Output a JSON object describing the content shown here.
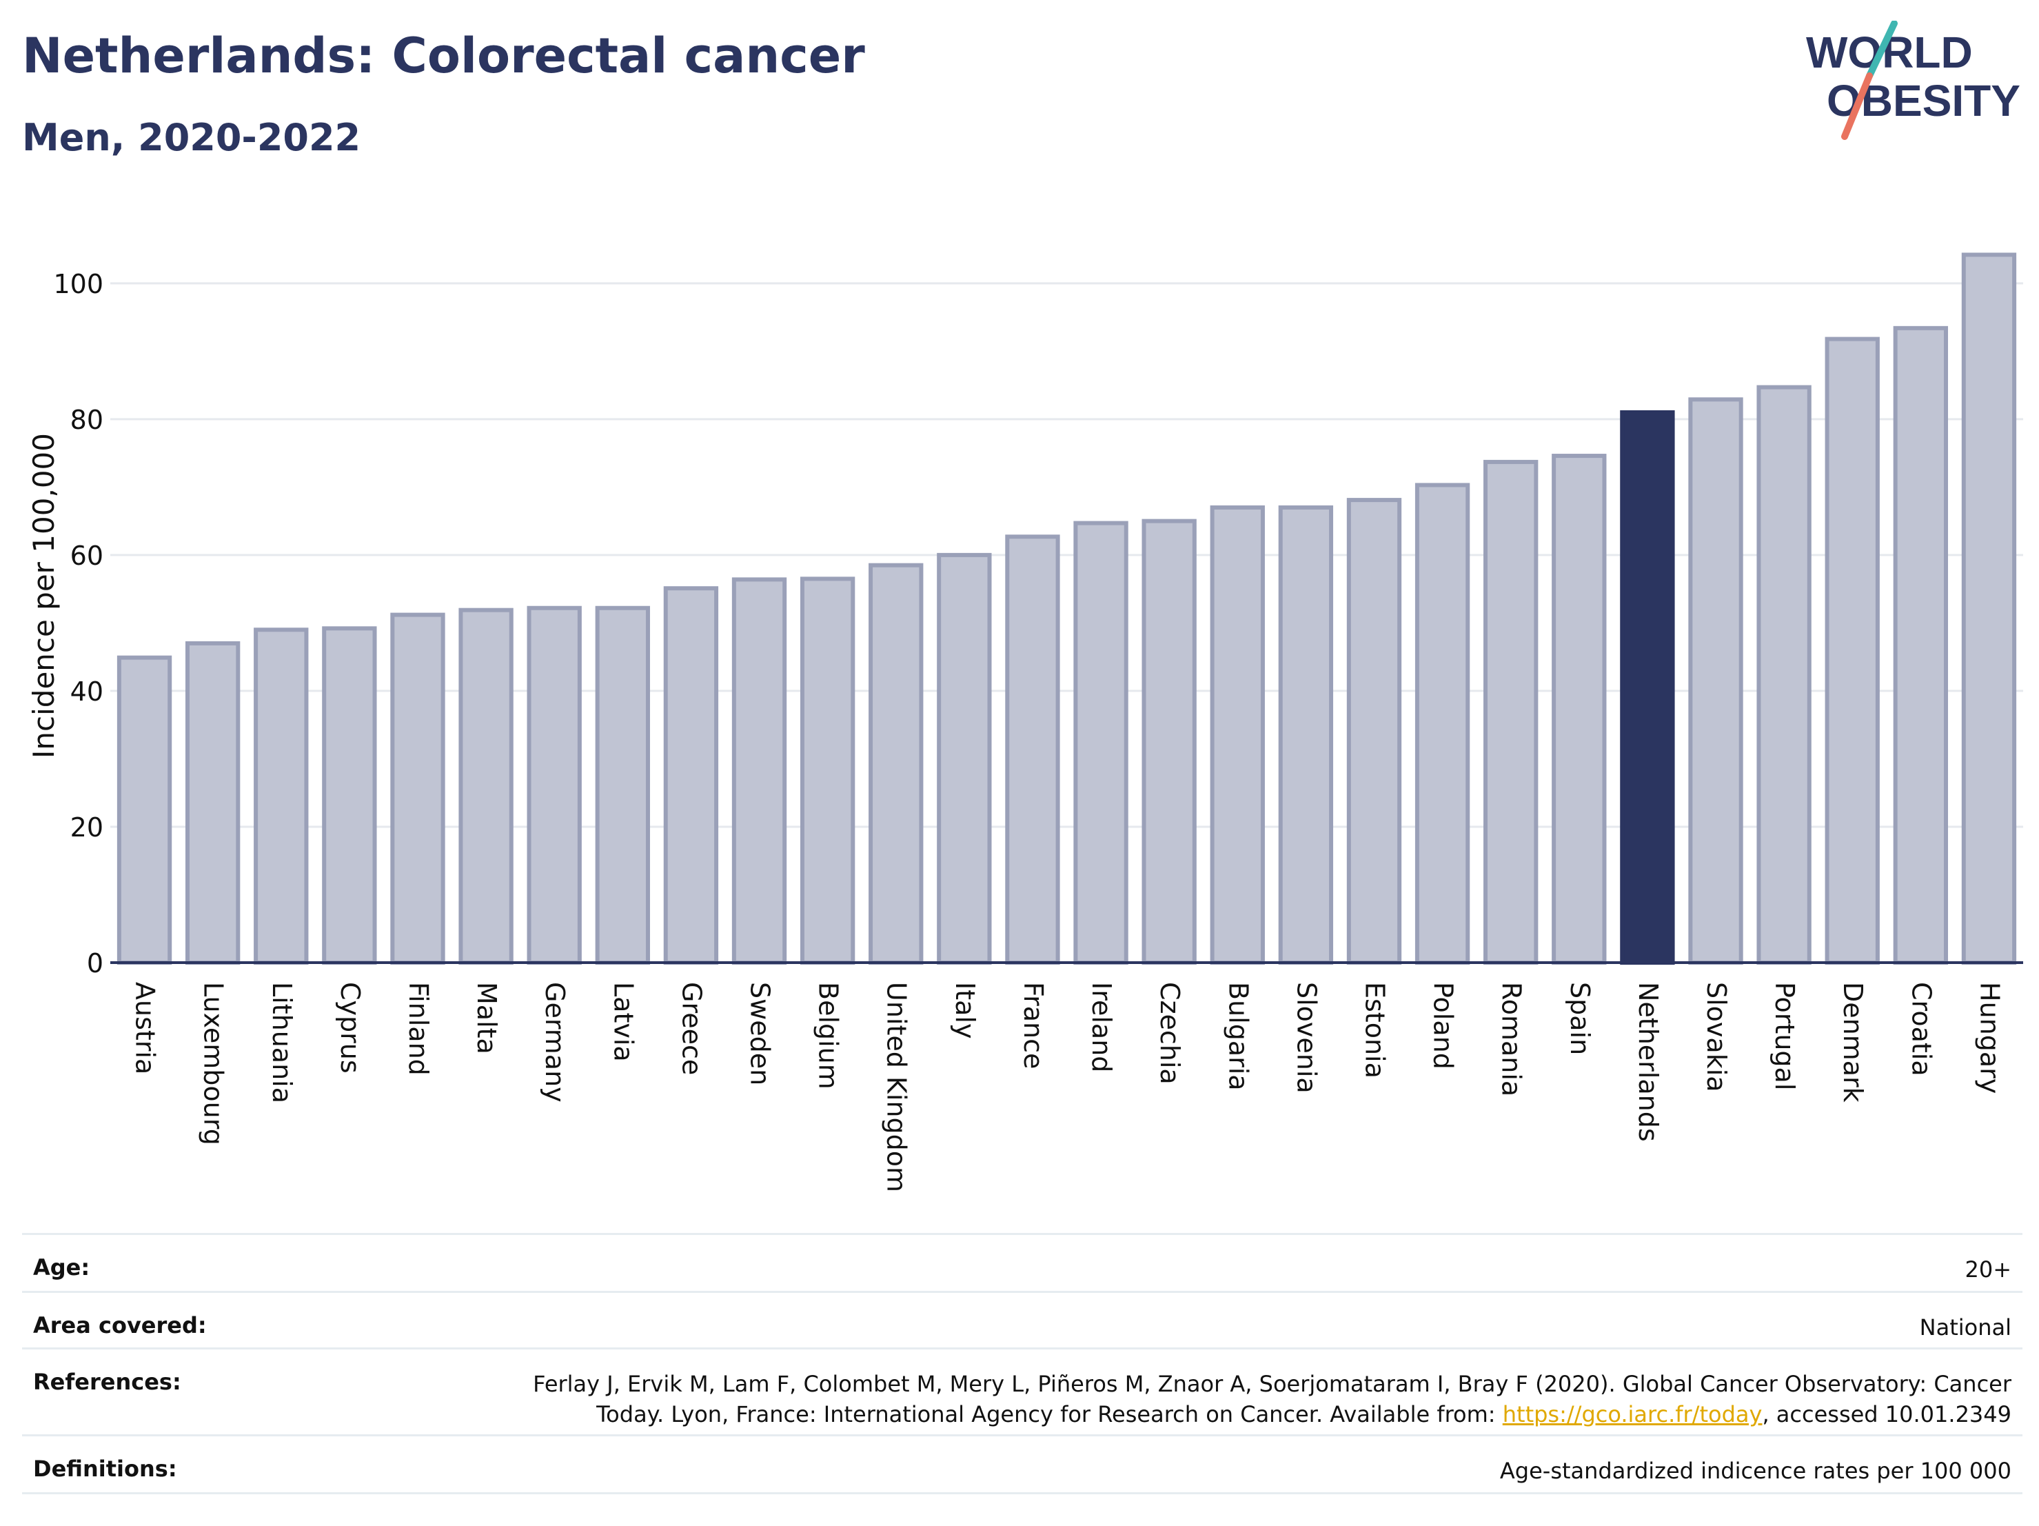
{
  "header": {
    "title": "Netherlands: Colorectal cancer",
    "subtitle": "Men, 2020-2022"
  },
  "logo": {
    "line1": "WORLD",
    "line2": "OBESITY",
    "colors": {
      "text": "#2b3560",
      "accent_teal": "#3fb6b1",
      "accent_coral": "#e9735f"
    }
  },
  "colors": {
    "bar": "#c0c4d3",
    "bar_border": "#9aa0b8",
    "highlight": "#2b3560",
    "grid": "#e6e9ee",
    "axis": "#2b3560"
  },
  "chart_data": {
    "type": "bar",
    "ylabel": "Incidence per 100,000",
    "ylim": [
      0,
      108
    ],
    "yticks": [
      0,
      20,
      40,
      60,
      80,
      100
    ],
    "grid": true,
    "highlight": "Netherlands",
    "categories": [
      "Austria",
      "Luxembourg",
      "Lithuania",
      "Cyprus",
      "Finland",
      "Malta",
      "Germany",
      "Latvia",
      "Greece",
      "Sweden",
      "Belgium",
      "United Kingdom",
      "Italy",
      "France",
      "Ireland",
      "Czechia",
      "Bulgaria",
      "Slovenia",
      "Estonia",
      "Poland",
      "Romania",
      "Spain",
      "Netherlands",
      "Slovakia",
      "Portugal",
      "Denmark",
      "Croatia",
      "Hungary"
    ],
    "values": [
      44.9,
      47.0,
      49.0,
      49.2,
      51.2,
      51.9,
      52.2,
      52.2,
      55.1,
      56.4,
      56.5,
      58.5,
      60.0,
      62.7,
      64.7,
      65.0,
      67.0,
      67.0,
      68.1,
      70.3,
      73.7,
      74.6,
      81.0,
      82.9,
      84.7,
      91.8,
      93.4,
      104.2
    ]
  },
  "info": [
    {
      "label": "Age:",
      "value": "20+"
    },
    {
      "label": "Area covered:",
      "value": "National"
    },
    {
      "label": "References:",
      "value_line1": "Ferlay J, Ervik M, Lam F, Colombet M, Mery L, Piñeros M, Znaor A, Soerjomataram I, Bray F (2020). Global Cancer Observatory: Cancer",
      "value_line2_prefix": "Today. Lyon, France: International Agency for Research on Cancer. Available from: ",
      "link": "https://gco.iarc.fr/today",
      "value_line2_suffix": ", accessed 10.01.2349"
    },
    {
      "label": "Definitions:",
      "value": "Age-standardized indicence rates per 100 000"
    }
  ]
}
